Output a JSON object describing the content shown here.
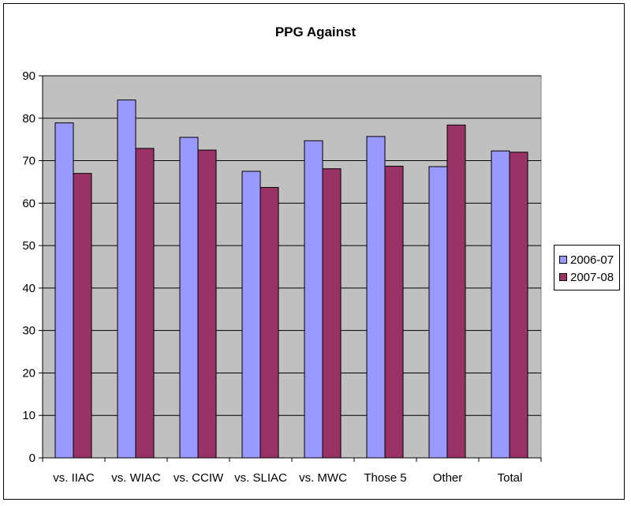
{
  "chart_data": {
    "type": "bar",
    "title": "PPG Against",
    "categories": [
      "vs. IIAC",
      "vs. WIAC",
      "vs. CCIW",
      "vs. SLIAC",
      "vs. MWC",
      "Those 5",
      "Other",
      "Total"
    ],
    "series": [
      {
        "name": "2006-07",
        "color": "#9999ff",
        "values": [
          78.9,
          84.3,
          75.5,
          67.5,
          74.7,
          75.7,
          68.6,
          72.3
        ]
      },
      {
        "name": "2007-08",
        "color": "#993366",
        "values": [
          67.0,
          72.9,
          72.5,
          63.7,
          68.1,
          68.7,
          78.4,
          72.0
        ]
      }
    ],
    "ylim": [
      0,
      90
    ],
    "yticks": [
      0,
      10,
      20,
      30,
      40,
      50,
      60,
      70,
      80,
      90
    ],
    "plot_background": "#c0c0c0",
    "grid": true,
    "legend_position": "right"
  }
}
